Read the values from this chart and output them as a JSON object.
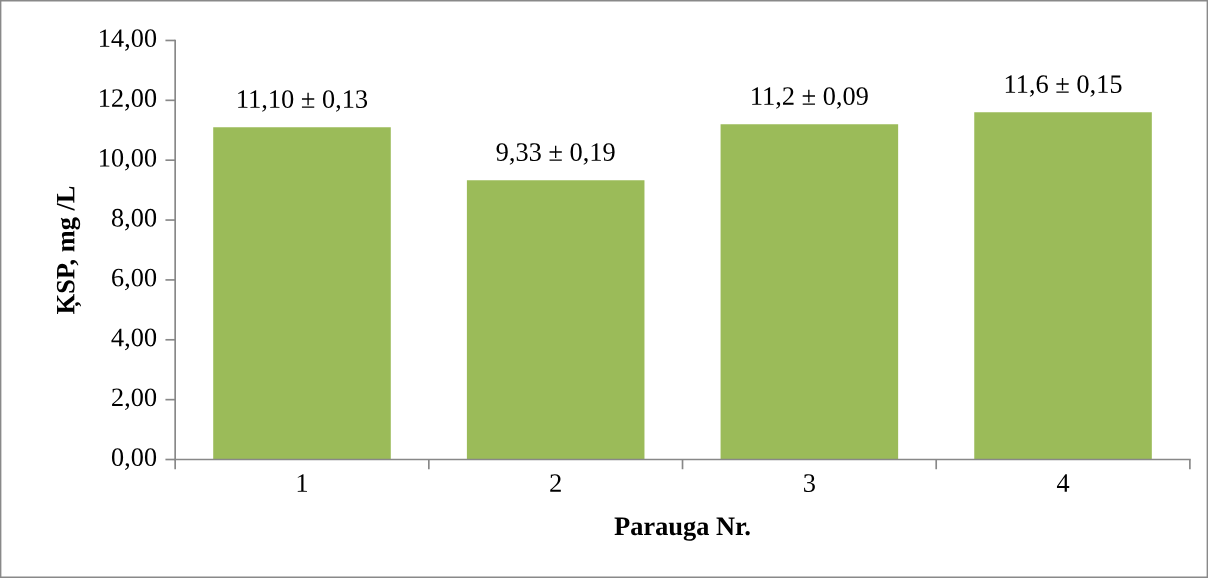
{
  "chart_data": {
    "type": "bar",
    "xlabel": "Parauga Nr.",
    "ylabel": "ĶSP, mg /L",
    "categories": [
      "1",
      "2",
      "3",
      "4"
    ],
    "values": [
      11.1,
      9.33,
      11.2,
      11.6
    ],
    "value_labels": [
      "11,10 ± 0,13",
      "9,33 ± 0,19",
      "11,2 ± 0,09",
      "11,6 ± 0,15"
    ],
    "color": "#9bbb59",
    "ylim": [
      0,
      14
    ],
    "yticks": [
      {
        "value": 0,
        "label": "0,00"
      },
      {
        "value": 2,
        "label": "2,00"
      },
      {
        "value": 4,
        "label": "4,00"
      },
      {
        "value": 6,
        "label": "6,00"
      },
      {
        "value": 8,
        "label": "8,00"
      },
      {
        "value": 10,
        "label": "10,00"
      },
      {
        "value": 12,
        "label": "12,00"
      },
      {
        "value": 14,
        "label": "14,00"
      }
    ],
    "grid": false,
    "legend": false
  }
}
